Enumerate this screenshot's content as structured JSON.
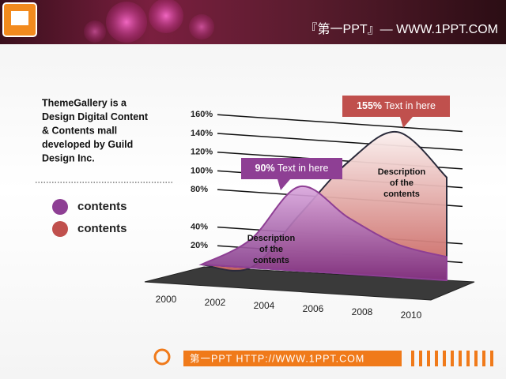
{
  "header": {
    "title": "『第一PPT』— WWW.1PPT.COM"
  },
  "sidebar": {
    "lines": [
      "ThemeGallery  is a",
      "Design  Digital Content",
      "& Contents mall",
      "developed  by Guild",
      "Design Inc."
    ]
  },
  "footer": {
    "text": "第一PPT HTTP://WWW.1PPT.COM"
  },
  "chart_data": {
    "type": "area",
    "x": [
      2000,
      2002,
      2004,
      2006,
      2008,
      2010
    ],
    "xlim": [
      2000,
      2010
    ],
    "ylim": [
      0,
      170
    ],
    "yticks": [
      {
        "value": 20,
        "label": "20%"
      },
      {
        "value": 40,
        "label": "40%"
      },
      {
        "value": 80,
        "label": "80%"
      },
      {
        "value": 100,
        "label": "100%"
      },
      {
        "value": 120,
        "label": "120%"
      },
      {
        "value": 140,
        "label": "140%"
      },
      {
        "value": 160,
        "label": "160%"
      }
    ],
    "grid": true,
    "series": [
      {
        "name": "contents",
        "color": "#8e3f94",
        "values": [
          0,
          30,
          90,
          60,
          35,
          25
        ]
      },
      {
        "name": "contents",
        "color": "#c0504d",
        "values": [
          0,
          0,
          60,
          120,
          155,
          110
        ]
      }
    ],
    "annotations": [
      {
        "bold": "90%",
        "text": " Text in here"
      },
      {
        "bold": "155%",
        "text": " Text in here"
      }
    ],
    "descriptions": [
      [
        "Description",
        "of the",
        "contents"
      ],
      [
        "Description",
        "of the",
        "contents"
      ]
    ]
  }
}
